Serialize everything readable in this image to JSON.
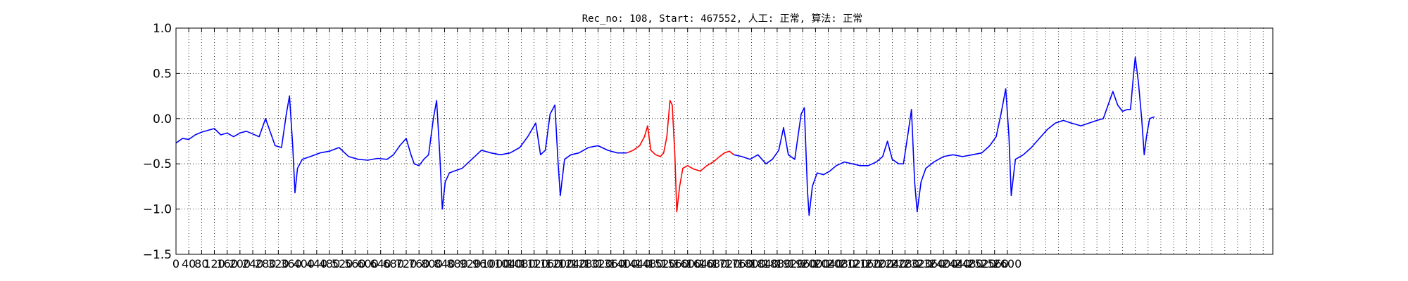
{
  "chart_data": {
    "type": "line",
    "title": "Rec_no: 108, Start: 467552, 人工: 正常, 算法: 正常",
    "xlabel": "",
    "ylabel": "",
    "xlim": [
      0,
      3000
    ],
    "ylim": [
      -1.5,
      1.0
    ],
    "yticks": [
      1.0,
      0.5,
      0.0,
      -0.5,
      -1.0,
      -1.5
    ],
    "ytick_labels": [
      "1.0",
      "0.5",
      "0.0",
      "−0.5",
      "−1.0",
      "−1.5"
    ],
    "xtick_step": 40,
    "xtick_labels": [
      "0",
      "40",
      "80",
      "120",
      "160",
      "200",
      "240",
      "280",
      "320",
      "360",
      "400",
      "440",
      "480",
      "520",
      "560",
      "600",
      "640",
      "680",
      "720",
      "760",
      "800",
      "840",
      "880",
      "920",
      "960",
      "1000",
      "1040",
      "1080",
      "1120",
      "1160",
      "1200",
      "1240",
      "1280",
      "1320",
      "1360",
      "1400",
      "1440",
      "1480",
      "1520",
      "1560",
      "1600",
      "1640",
      "1680",
      "1720",
      "1760",
      "1800",
      "1840",
      "1880",
      "1920",
      "1960",
      "2000",
      "2040",
      "2080",
      "2120",
      "2160",
      "2200",
      "2240",
      "2280",
      "2320",
      "2360",
      "2400",
      "2440",
      "2480",
      "2520",
      "2560",
      "2600"
    ],
    "grid": true,
    "grid_style": "dotted",
    "series": [
      {
        "color": "#0000ff",
        "points": [
          [
            0,
            -0.27
          ],
          [
            20,
            -0.22
          ],
          [
            40,
            -0.23
          ],
          [
            60,
            -0.18
          ],
          [
            80,
            -0.15
          ],
          [
            100,
            -0.13
          ],
          [
            120,
            -0.11
          ],
          [
            140,
            -0.18
          ],
          [
            160,
            -0.16
          ],
          [
            180,
            -0.2
          ],
          [
            200,
            -0.16
          ],
          [
            220,
            -0.14
          ],
          [
            240,
            -0.17
          ],
          [
            260,
            -0.2
          ],
          [
            280,
            0.0
          ],
          [
            295,
            -0.15
          ],
          [
            310,
            -0.3
          ],
          [
            330,
            -0.32
          ],
          [
            345,
            0.05
          ],
          [
            355,
            0.25
          ],
          [
            365,
            -0.3
          ],
          [
            372,
            -0.82
          ],
          [
            380,
            -0.55
          ],
          [
            395,
            -0.45
          ],
          [
            420,
            -0.42
          ],
          [
            450,
            -0.38
          ],
          [
            480,
            -0.36
          ],
          [
            510,
            -0.32
          ],
          [
            540,
            -0.42
          ],
          [
            570,
            -0.45
          ],
          [
            600,
            -0.46
          ],
          [
            630,
            -0.44
          ],
          [
            660,
            -0.45
          ],
          [
            680,
            -0.4
          ],
          [
            700,
            -0.3
          ],
          [
            720,
            -0.22
          ],
          [
            735,
            -0.4
          ],
          [
            745,
            -0.5
          ],
          [
            760,
            -0.52
          ],
          [
            775,
            -0.45
          ],
          [
            790,
            -0.4
          ],
          [
            805,
            0.0
          ],
          [
            815,
            0.2
          ],
          [
            825,
            -0.4
          ],
          [
            833,
            -1.0
          ],
          [
            842,
            -0.7
          ],
          [
            855,
            -0.6
          ],
          [
            870,
            -0.58
          ],
          [
            895,
            -0.55
          ],
          [
            925,
            -0.45
          ],
          [
            955,
            -0.35
          ],
          [
            985,
            -0.38
          ],
          [
            1015,
            -0.4
          ],
          [
            1045,
            -0.38
          ],
          [
            1075,
            -0.32
          ],
          [
            1100,
            -0.2
          ],
          [
            1125,
            -0.05
          ],
          [
            1140,
            -0.4
          ],
          [
            1155,
            -0.35
          ],
          [
            1170,
            0.05
          ],
          [
            1185,
            0.15
          ],
          [
            1195,
            -0.5
          ],
          [
            1202,
            -0.85
          ],
          [
            1215,
            -0.45
          ],
          [
            1235,
            -0.4
          ],
          [
            1260,
            -0.38
          ],
          [
            1290,
            -0.32
          ],
          [
            1320,
            -0.3
          ],
          [
            1350,
            -0.35
          ],
          [
            1380,
            -0.38
          ],
          [
            1410,
            -0.38
          ]
        ]
      },
      {
        "color": "#ff0000",
        "points": [
          [
            1410,
            -0.38
          ],
          [
            1430,
            -0.35
          ],
          [
            1450,
            -0.3
          ],
          [
            1465,
            -0.2
          ],
          [
            1475,
            -0.08
          ],
          [
            1485,
            -0.35
          ],
          [
            1500,
            -0.4
          ],
          [
            1515,
            -0.42
          ],
          [
            1525,
            -0.38
          ],
          [
            1535,
            -0.2
          ],
          [
            1545,
            0.2
          ],
          [
            1552,
            0.15
          ],
          [
            1560,
            -0.4
          ],
          [
            1566,
            -1.03
          ],
          [
            1575,
            -0.75
          ],
          [
            1585,
            -0.55
          ],
          [
            1600,
            -0.52
          ],
          [
            1620,
            -0.56
          ],
          [
            1640,
            -0.58
          ],
          [
            1660,
            -0.52
          ],
          [
            1680,
            -0.48
          ],
          [
            1700,
            -0.42
          ],
          [
            1715,
            -0.38
          ],
          [
            1730,
            -0.36
          ],
          [
            1745,
            -0.4
          ]
        ]
      },
      {
        "color": "#0000ff",
        "points": [
          [
            1745,
            -0.4
          ],
          [
            1770,
            -0.42
          ],
          [
            1795,
            -0.45
          ],
          [
            1820,
            -0.4
          ],
          [
            1845,
            -0.5
          ],
          [
            1865,
            -0.45
          ],
          [
            1885,
            -0.35
          ],
          [
            1900,
            -0.1
          ],
          [
            1915,
            -0.4
          ],
          [
            1935,
            -0.45
          ],
          [
            1955,
            0.05
          ],
          [
            1965,
            0.12
          ],
          [
            1975,
            -0.8
          ],
          [
            1980,
            -1.07
          ],
          [
            1990,
            -0.75
          ],
          [
            2005,
            -0.6
          ],
          [
            2025,
            -0.62
          ],
          [
            2045,
            -0.58
          ],
          [
            2065,
            -0.52
          ],
          [
            2090,
            -0.48
          ],
          [
            2115,
            -0.5
          ],
          [
            2140,
            -0.52
          ],
          [
            2165,
            -0.52
          ],
          [
            2190,
            -0.48
          ],
          [
            2210,
            -0.42
          ],
          [
            2225,
            -0.25
          ],
          [
            2240,
            -0.45
          ],
          [
            2260,
            -0.5
          ],
          [
            2275,
            -0.5
          ],
          [
            2290,
            -0.15
          ],
          [
            2300,
            0.1
          ],
          [
            2310,
            -0.7
          ],
          [
            2318,
            -1.03
          ],
          [
            2330,
            -0.7
          ],
          [
            2345,
            -0.55
          ],
          [
            2370,
            -0.48
          ],
          [
            2400,
            -0.42
          ],
          [
            2430,
            -0.4
          ],
          [
            2460,
            -0.42
          ],
          [
            2490,
            -0.4
          ],
          [
            2520,
            -0.38
          ],
          [
            2545,
            -0.3
          ],
          [
            2565,
            -0.2
          ],
          [
            2580,
            0.05
          ],
          [
            2595,
            0.33
          ],
          [
            2605,
            -0.2
          ],
          [
            2612,
            -0.85
          ],
          [
            2625,
            -0.45
          ],
          [
            2650,
            -0.4
          ],
          [
            2675,
            -0.32
          ],
          [
            2700,
            -0.22
          ],
          [
            2725,
            -0.12
          ],
          [
            2750,
            -0.05
          ],
          [
            2775,
            -0.02
          ],
          [
            2800,
            -0.05
          ],
          [
            2830,
            -0.08
          ],
          [
            2855,
            -0.05
          ],
          [
            2880,
            -0.02
          ],
          [
            2900,
            0.0
          ],
          [
            2915,
            0.15
          ],
          [
            2930,
            0.3
          ],
          [
            2945,
            0.15
          ],
          [
            2960,
            0.08
          ],
          [
            2975,
            0.1
          ],
          [
            2985,
            0.1
          ],
          [
            2995,
            0.5
          ],
          [
            3000,
            0.68
          ],
          [
            3010,
            0.4
          ],
          [
            3020,
            0.0
          ],
          [
            3028,
            -0.4
          ],
          [
            3035,
            -0.2
          ],
          [
            3045,
            0.0
          ],
          [
            3060,
            0.02
          ]
        ]
      }
    ]
  }
}
